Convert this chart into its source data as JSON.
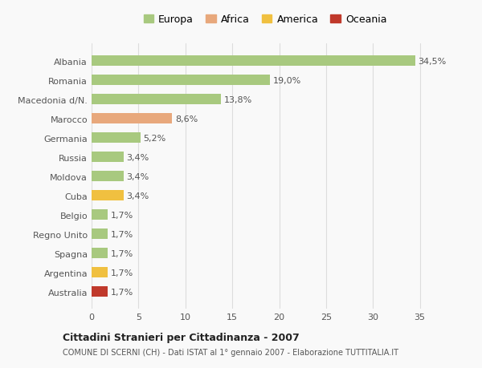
{
  "categories": [
    "Albania",
    "Romania",
    "Macedonia d/N.",
    "Marocco",
    "Germania",
    "Russia",
    "Moldova",
    "Cuba",
    "Belgio",
    "Regno Unito",
    "Spagna",
    "Argentina",
    "Australia"
  ],
  "values": [
    34.5,
    19.0,
    13.8,
    8.6,
    5.2,
    3.4,
    3.4,
    3.4,
    1.7,
    1.7,
    1.7,
    1.7,
    1.7
  ],
  "labels": [
    "34,5%",
    "19,0%",
    "13,8%",
    "8,6%",
    "5,2%",
    "3,4%",
    "3,4%",
    "3,4%",
    "1,7%",
    "1,7%",
    "1,7%",
    "1,7%",
    "1,7%"
  ],
  "continents": [
    "Europa",
    "Europa",
    "Europa",
    "Africa",
    "Europa",
    "Europa",
    "Europa",
    "America",
    "Europa",
    "Europa",
    "Europa",
    "America",
    "Oceania"
  ],
  "colors": {
    "Europa": "#a8c97f",
    "Africa": "#e8a87c",
    "America": "#f0c040",
    "Oceania": "#c0392b"
  },
  "xlim": [
    0,
    37
  ],
  "xticks": [
    0,
    5,
    10,
    15,
    20,
    25,
    30,
    35
  ],
  "title": "Cittadini Stranieri per Cittadinanza - 2007",
  "subtitle": "COMUNE DI SCERNI (CH) - Dati ISTAT al 1° gennaio 2007 - Elaborazione TUTTITALIA.IT",
  "background_color": "#f9f9f9",
  "grid_color": "#dddddd",
  "bar_height": 0.55,
  "legend_order": [
    "Europa",
    "Africa",
    "America",
    "Oceania"
  ]
}
